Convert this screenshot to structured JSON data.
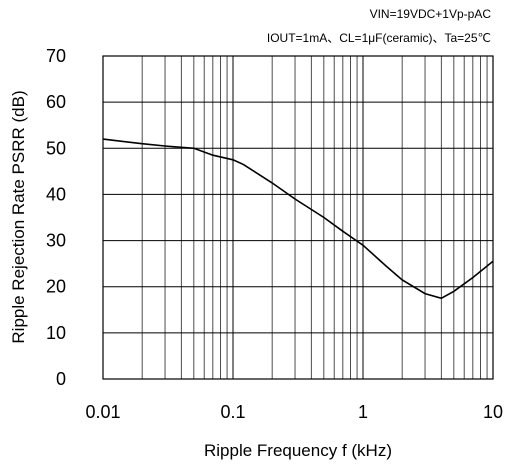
{
  "conditions": {
    "line1": "VIN=19VDC+1Vp-pAC",
    "line2": "IOUT=1mA、CL=1μF(ceramic)、Ta=25℃"
  },
  "chart_data": {
    "type": "line",
    "title": "",
    "xlabel": "Ripple Frequency  f  (kHz)",
    "ylabel": "Ripple Rejection Rate PSRR (dB)",
    "xscale": "log",
    "xlim": [
      0.01,
      10
    ],
    "ylim": [
      0,
      70
    ],
    "xticks": [
      {
        "value": 0.01,
        "label": "0.01"
      },
      {
        "value": 0.1,
        "label": "0.1"
      },
      {
        "value": 1,
        "label": "1"
      },
      {
        "value": 10,
        "label": "10"
      }
    ],
    "yticks": [
      {
        "value": 0,
        "label": "0"
      },
      {
        "value": 10,
        "label": "10"
      },
      {
        "value": 20,
        "label": "20"
      },
      {
        "value": 30,
        "label": "30"
      },
      {
        "value": 40,
        "label": "40"
      },
      {
        "value": 50,
        "label": "50"
      },
      {
        "value": 60,
        "label": "60"
      },
      {
        "value": 70,
        "label": "70"
      }
    ],
    "grid": true,
    "series": [
      {
        "x": [
          0.01,
          0.02,
          0.03,
          0.05,
          0.07,
          0.1,
          0.12,
          0.2,
          0.3,
          0.5,
          0.7,
          1,
          1.5,
          2,
          3,
          4,
          5,
          7,
          10
        ],
        "y": [
          52,
          51,
          50.5,
          50,
          48.5,
          47.5,
          46.5,
          42.5,
          39,
          35,
          32,
          29,
          24.5,
          21.5,
          18.5,
          17.5,
          19,
          22,
          25.5
        ]
      }
    ]
  }
}
